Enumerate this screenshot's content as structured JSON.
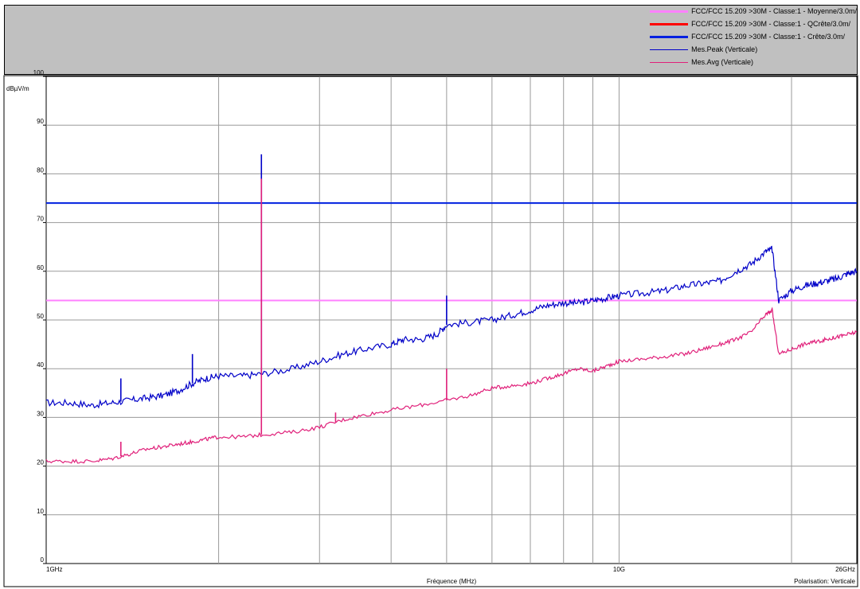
{
  "header": {
    "title": ""
  },
  "chart_data": {
    "type": "line",
    "ylabel": "dBµV/m",
    "xlabel": "Fréquence (MHz)",
    "polarisation_label": "Polarisation: Verticale",
    "x_scale": "log",
    "xlim": [
      1000,
      26000
    ],
    "ylim": [
      0,
      100
    ],
    "y_ticks": [
      0,
      10,
      20,
      30,
      40,
      50,
      60,
      70,
      80,
      90,
      100
    ],
    "x_tick_labels": [
      {
        "value": 1000,
        "label": "1GHz"
      },
      {
        "value": 10000,
        "label": "10G"
      },
      {
        "value": 26000,
        "label": "26GHz"
      }
    ],
    "x_gridlines": [
      1000,
      2000,
      3000,
      4000,
      5000,
      6000,
      7000,
      8000,
      9000,
      10000,
      20000,
      26000
    ],
    "grid": true,
    "legend_position": "top-right",
    "limits": [
      {
        "name": "FCC/FCC 15.209 >30M - Classe:1 - Moyenne/3.0m/",
        "color": "#ff80ff",
        "value": 54
      },
      {
        "name": "FCC/FCC 15.209 >30M - Classe:1 - QCrête/3.0m/",
        "color": "#ff0000",
        "value": null
      },
      {
        "name": "FCC/FCC 15.209 >30M - Classe:1 - Crête/3.0m/",
        "color": "#0020e0",
        "value": 74
      }
    ],
    "series": [
      {
        "name": "Mes.Peak (Verticale)",
        "color": "#0000c8",
        "x": [
          1000,
          1100,
          1200,
          1300,
          1400,
          1500,
          1600,
          1700,
          1800,
          1900,
          2000,
          2200,
          2400,
          2700,
          3000,
          3300,
          3600,
          4000,
          4200,
          4500,
          4800,
          5000,
          5500,
          6000,
          6500,
          7000,
          7500,
          8000,
          8500,
          9000,
          9500,
          10000,
          11000,
          12000,
          13000,
          14000,
          15000,
          16000,
          17000,
          18000,
          18500,
          19000,
          20000,
          21000,
          22000,
          23000,
          24000,
          25000,
          26000
        ],
        "values": [
          33,
          33,
          32.5,
          33,
          33.5,
          34,
          34.5,
          35.5,
          37,
          38,
          38.5,
          38.5,
          39,
          40,
          41.5,
          43,
          44,
          45,
          46,
          46,
          47,
          49,
          49.5,
          50,
          51,
          52,
          53,
          53.5,
          53.5,
          54,
          54.5,
          55,
          55.5,
          56,
          57,
          57.5,
          58,
          60,
          61.5,
          64,
          64.5,
          54,
          56,
          57,
          57.5,
          58,
          58.5,
          59.5,
          60
        ],
        "spikes": [
          {
            "x": 2375,
            "value": 84
          },
          {
            "x": 5000,
            "value": 55
          },
          {
            "x": 1350,
            "value": 38
          },
          {
            "x": 1800,
            "value": 43
          }
        ]
      },
      {
        "name": "Mes.Avg (Verticale)",
        "color": "#e0207a",
        "x": [
          1000,
          1100,
          1200,
          1300,
          1400,
          1500,
          1600,
          1700,
          1800,
          1900,
          2000,
          2200,
          2400,
          2700,
          3000,
          3300,
          3600,
          4000,
          4500,
          5000,
          5500,
          6000,
          6500,
          7000,
          7500,
          8000,
          8500,
          9000,
          9500,
          10000,
          11000,
          12000,
          13000,
          14000,
          15000,
          16000,
          17000,
          18000,
          18500,
          19000,
          20000,
          21000,
          22000,
          23000,
          24000,
          25000,
          26000
        ],
        "values": [
          21,
          21,
          21,
          21.5,
          22.5,
          23.5,
          24,
          24.5,
          25,
          25.5,
          26,
          26,
          26.5,
          27,
          28,
          29.5,
          30.5,
          31.5,
          32.5,
          33.5,
          34.5,
          36,
          36.5,
          37,
          38,
          39,
          40,
          39.5,
          40.5,
          41.5,
          42,
          42.5,
          43,
          44,
          45,
          46,
          47.5,
          51,
          52,
          43,
          44,
          45,
          45.5,
          46,
          46.5,
          47,
          47.5
        ],
        "spikes": [
          {
            "x": 2375,
            "value": 79
          },
          {
            "x": 5000,
            "value": 40
          },
          {
            "x": 1350,
            "value": 25
          },
          {
            "x": 3200,
            "value": 31
          }
        ]
      }
    ]
  }
}
